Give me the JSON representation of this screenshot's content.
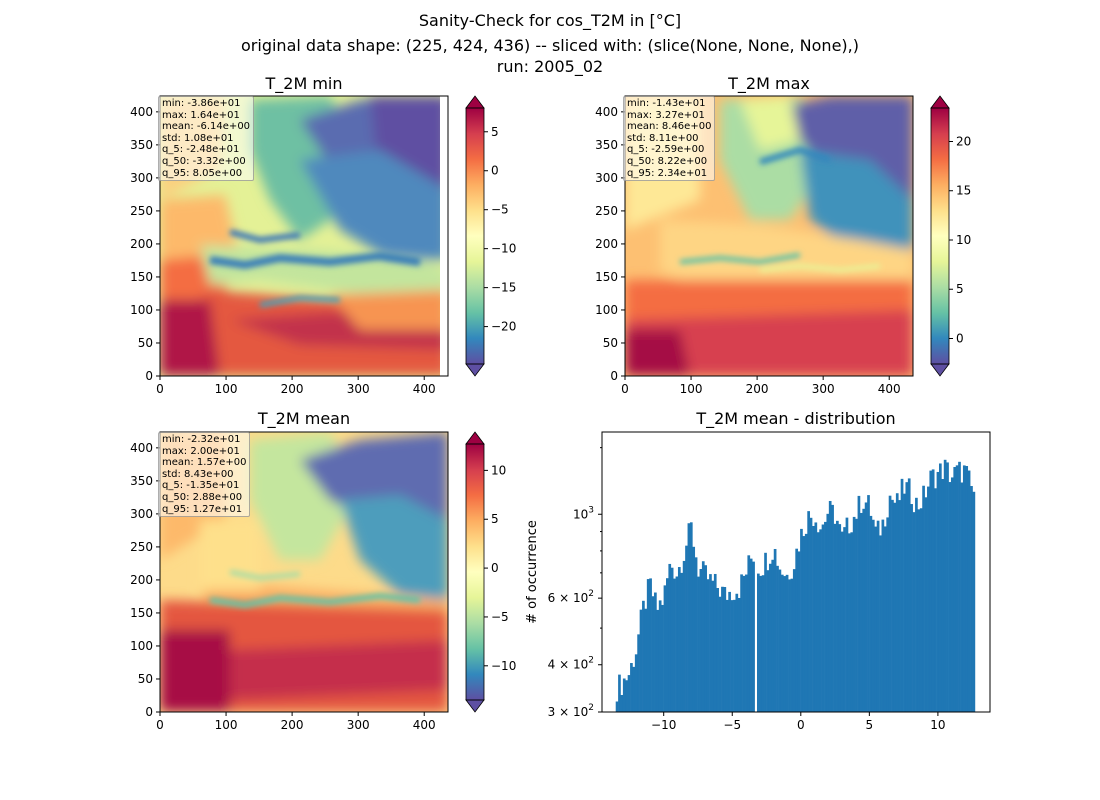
{
  "suptitle": {
    "line1": "Sanity-Check for cos_T2M in [°C]",
    "line2": "original data shape: (225, 424, 436) -- sliced with: (slice(None, None, None),)",
    "line3": "run: 2005_02"
  },
  "colors": {
    "hist_bar": "#1f77b4",
    "spectral": [
      "#5e4fa2",
      "#3288bd",
      "#66c2a5",
      "#abdda4",
      "#e6f598",
      "#ffffbf",
      "#fee08b",
      "#fdae61",
      "#f46d43",
      "#d53e4f",
      "#9e0142"
    ]
  },
  "maps": [
    {
      "id": "min",
      "title": "T_2M min",
      "xticks": [
        0,
        100,
        200,
        300,
        400
      ],
      "yticks": [
        0,
        50,
        100,
        150,
        200,
        250,
        300,
        350,
        400
      ],
      "cbar_ticks": [
        -20,
        -15,
        -10,
        -5,
        0,
        5
      ],
      "cbar_range": [
        -24.8,
        8.05
      ],
      "stats": [
        "min: -3.86e+01",
        "max: 1.64e+01",
        "mean: -6.14e+00",
        "std: 1.08e+01",
        "q_5: -2.48e+01",
        "q_50: -3.32e+00",
        "q_95: 8.05e+00"
      ]
    },
    {
      "id": "max",
      "title": "T_2M max",
      "xticks": [
        0,
        100,
        200,
        300,
        400
      ],
      "yticks": [
        0,
        50,
        100,
        150,
        200,
        250,
        300,
        350,
        400
      ],
      "cbar_ticks": [
        0,
        5,
        10,
        15,
        20
      ],
      "cbar_range": [
        -2.59,
        23.4
      ],
      "stats": [
        "min: -1.43e+01",
        "max: 3.27e+01",
        "mean: 8.46e+00",
        "std: 8.11e+00",
        "q_5: -2.59e+00",
        "q_50: 8.22e+00",
        "q_95: 2.34e+01"
      ]
    },
    {
      "id": "mean",
      "title": "T_2M mean",
      "xticks": [
        0,
        100,
        200,
        300,
        400
      ],
      "yticks": [
        0,
        50,
        100,
        150,
        200,
        250,
        300,
        350,
        400
      ],
      "cbar_ticks": [
        -10,
        -5,
        0,
        5,
        10
      ],
      "cbar_range": [
        -13.5,
        12.7
      ],
      "stats": [
        "min: -2.32e+01",
        "max: 2.00e+01",
        "mean: 1.57e+00",
        "std: 8.43e+00",
        "q_5: -1.35e+01",
        "q_50: 2.88e+00",
        "q_95: 1.27e+01"
      ]
    }
  ],
  "chart_data": {
    "type": "bar",
    "title": "T_2M mean - distribution",
    "xlabel": "",
    "ylabel": "# of occurrence",
    "yscale": "log",
    "xlim": [
      -14.5,
      13.8
    ],
    "ylim": [
      300,
      1650
    ],
    "xticks": [
      -10,
      -5,
      0,
      5,
      10
    ],
    "yticks": [
      {
        "value": 300,
        "base": "3 × 10",
        "exp": "2"
      },
      {
        "value": 400,
        "base": "4 × 10",
        "exp": "2"
      },
      {
        "value": 600,
        "base": "6 × 10",
        "exp": "2"
      },
      {
        "value": 1000,
        "base": "10",
        "exp": "3"
      }
    ],
    "bin_range": [
      -13.5,
      12.7
    ],
    "bin_count": 150,
    "profile_x": [
      -13.5,
      -13.0,
      -12.5,
      -12.0,
      -11.5,
      -11.0,
      -10.5,
      -10.0,
      -9.5,
      -9.0,
      -8.5,
      -8.0,
      -7.5,
      -7.0,
      -6.5,
      -6.0,
      -5.5,
      -5.0,
      -4.5,
      -4.0,
      -3.5,
      -3.0,
      -2.5,
      -2.0,
      -1.5,
      -1.0,
      -0.5,
      0.0,
      0.5,
      1.0,
      1.5,
      2.0,
      2.5,
      3.0,
      3.5,
      4.0,
      4.5,
      5.0,
      5.5,
      6.0,
      6.5,
      7.0,
      7.5,
      8.0,
      8.5,
      9.0,
      9.5,
      10.0,
      10.5,
      11.0,
      11.5,
      12.0,
      12.5
    ],
    "profile_y": [
      345,
      360,
      380,
      440,
      560,
      650,
      560,
      600,
      740,
      700,
      800,
      920,
      720,
      690,
      660,
      640,
      610,
      630,
      640,
      700,
      790,
      720,
      760,
      820,
      720,
      690,
      750,
      880,
      980,
      1000,
      920,
      1020,
      1000,
      860,
      940,
      1000,
      1100,
      1050,
      880,
      950,
      1120,
      1060,
      1180,
      1150,
      1050,
      1120,
      1250,
      1280,
      1330,
      1260,
      1300,
      1300,
      1150
    ],
    "gap_x": -3.32
  }
}
